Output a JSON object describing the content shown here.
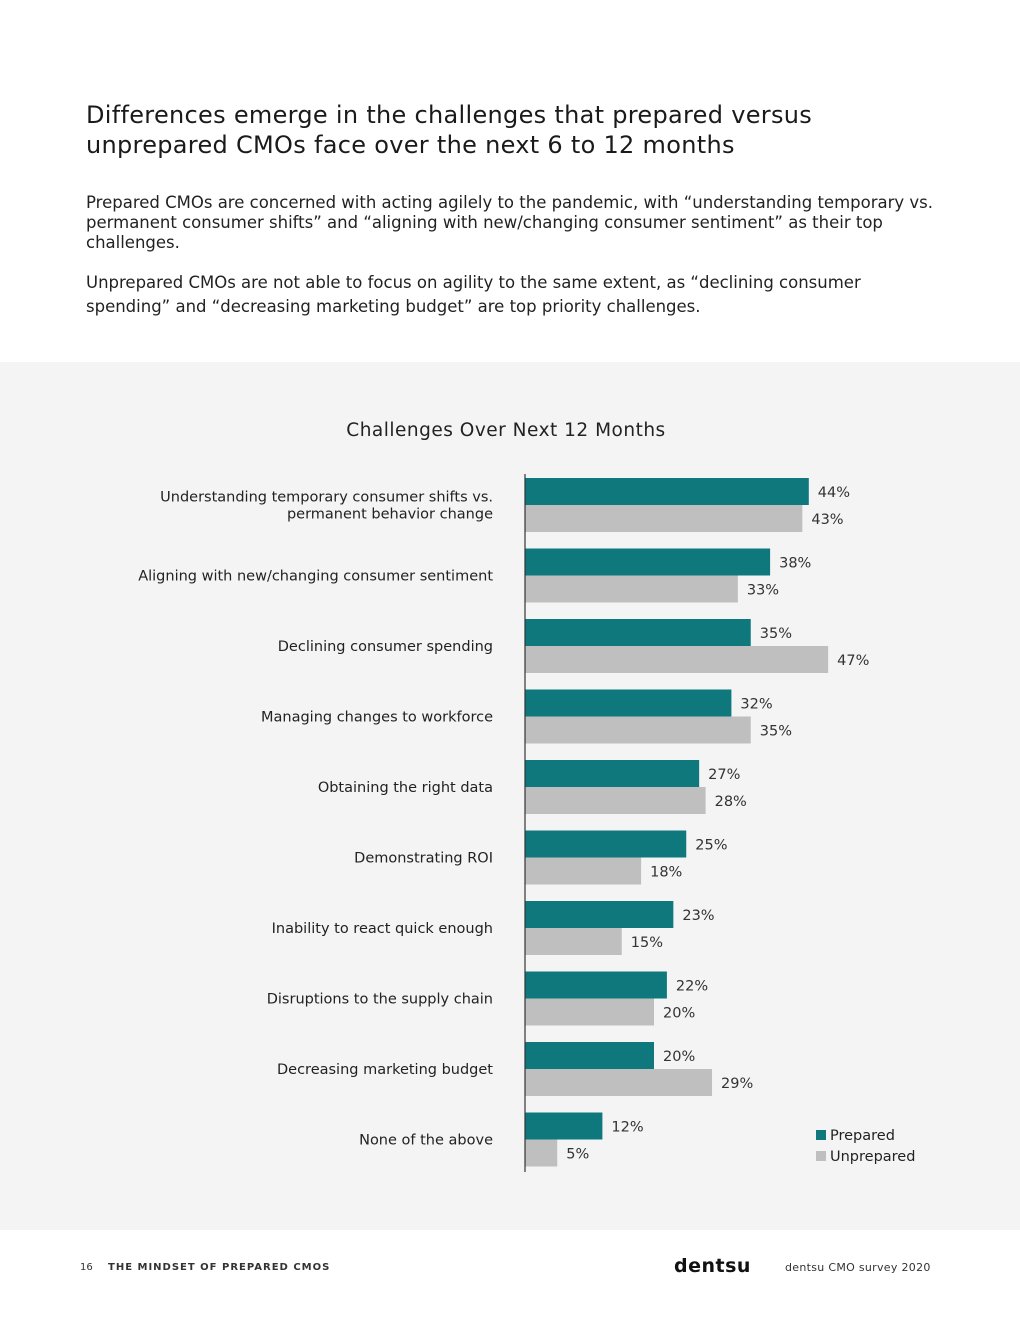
{
  "page": {
    "title": "Differences emerge in the challenges that prepared versus unprepared CMOs face over the next 6 to 12 months",
    "paragraph1": "Prepared CMOs are concerned with acting agilely to the pandemic, with “understanding temporary vs. permanent consumer shifts” and “aligning with new/changing consumer sentiment” as their top challenges.",
    "paragraph2": "Unprepared CMOs are not able to focus on agility to the same extent, as “declining consumer spending” and “decreasing marketing budget” are top priority challenges."
  },
  "colors": {
    "prepared": "#0e787c",
    "unprepared": "#bfbfbf",
    "panel_bg": "#f4f4f4"
  },
  "chart_data": {
    "type": "bar",
    "orientation": "horizontal",
    "title": "Challenges Over Next 12 Months",
    "categories": [
      [
        "Understanding temporary consumer shifts vs.",
        "permanent behavior change"
      ],
      [
        "Aligning with new/changing consumer sentiment"
      ],
      [
        "Declining consumer spending"
      ],
      [
        "Managing changes to workforce"
      ],
      [
        "Obtaining the right data"
      ],
      [
        "Demonstrating ROI"
      ],
      [
        "Inability to react quick enough"
      ],
      [
        "Disruptions to the supply chain"
      ],
      [
        "Decreasing marketing budget"
      ],
      [
        "None of the above"
      ]
    ],
    "series": [
      {
        "name": "Prepared",
        "color": "#0e787c",
        "values": [
          44,
          38,
          35,
          32,
          27,
          25,
          23,
          22,
          20,
          12
        ]
      },
      {
        "name": "Unprepared",
        "color": "#bfbfbf",
        "values": [
          43,
          33,
          47,
          35,
          28,
          18,
          15,
          20,
          29,
          5
        ]
      }
    ],
    "value_suffix": "%",
    "xlim": [
      0,
      50
    ],
    "legend": "bottom-right",
    "grid": false
  },
  "footer": {
    "page_number": "16",
    "doc_title": "THE MINDSET OF PREPARED CMOS",
    "brand": "dentsu",
    "survey": "dentsu CMO survey 2020"
  }
}
